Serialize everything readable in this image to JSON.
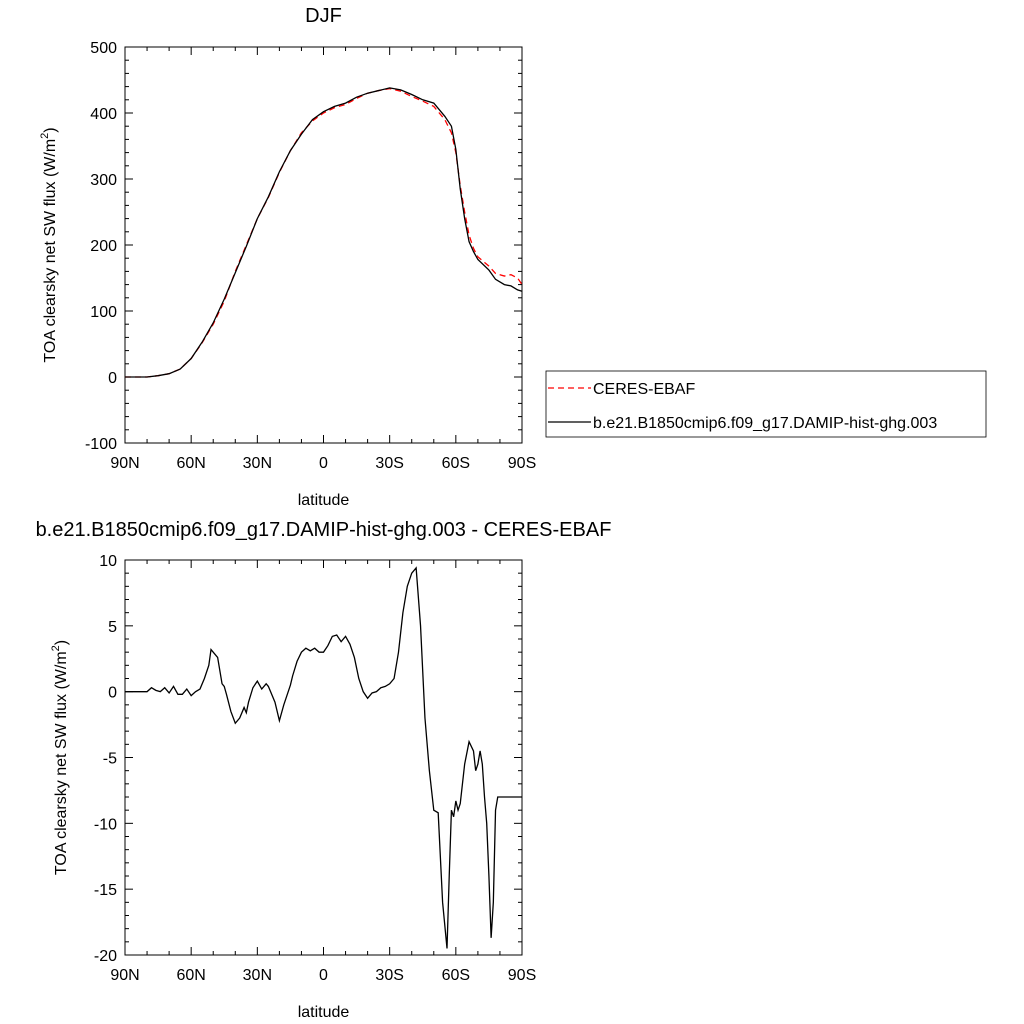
{
  "chart_data": [
    {
      "type": "line",
      "title": "DJF",
      "xlabel": "latitude",
      "ylabel_main": "TOA clearsky net SW flux (W/m",
      "ylabel_sup": "2",
      "ylabel_close": ")",
      "xlim": [
        90,
        -90
      ],
      "ylim": [
        -100,
        500
      ],
      "xtick_values": [
        90,
        60,
        30,
        0,
        -30,
        -60,
        -90
      ],
      "xtick_labels": [
        "90N",
        "60N",
        "30N",
        "0",
        "30S",
        "60S",
        "90S"
      ],
      "ytick_values": [
        -100,
        0,
        100,
        200,
        300,
        400,
        500
      ],
      "ytick_labels": [
        "-100",
        "0",
        "100",
        "200",
        "300",
        "400",
        "500"
      ],
      "series": [
        {
          "name": "CERES-EBAF",
          "color": "#ff0000",
          "dashed": true,
          "x": [
            90,
            85,
            80,
            75,
            70,
            65,
            60,
            55,
            50,
            45,
            40,
            35,
            30,
            25,
            20,
            15,
            10,
            5,
            0,
            -5,
            -10,
            -15,
            -20,
            -25,
            -30,
            -35,
            -40,
            -45,
            -50,
            -55,
            -58,
            -60,
            -62,
            -64,
            -66,
            -68,
            -70,
            -75,
            -78,
            -80,
            -82,
            -85,
            -88,
            -90
          ],
          "y": [
            0,
            0,
            0,
            2,
            5,
            12,
            28,
            52,
            80,
            115,
            160,
            200,
            240,
            272,
            310,
            343,
            370,
            388,
            400,
            408,
            413,
            422,
            430,
            434,
            437,
            433,
            425,
            418,
            410,
            390,
            370,
            340,
            290,
            250,
            215,
            195,
            182,
            168,
            157,
            155,
            153,
            155,
            150,
            140
          ]
        },
        {
          "name": "b.e21.B1850cmip6.f09_g17.DAMIP-hist-ghg.003",
          "color": "#000000",
          "dashed": false,
          "x": [
            90,
            85,
            80,
            75,
            70,
            65,
            60,
            55,
            50,
            45,
            40,
            35,
            30,
            25,
            20,
            15,
            10,
            5,
            0,
            -5,
            -10,
            -15,
            -20,
            -25,
            -30,
            -35,
            -40,
            -45,
            -50,
            -55,
            -58,
            -60,
            -62,
            -64,
            -66,
            -68,
            -70,
            -75,
            -78,
            -80,
            -82,
            -85,
            -88,
            -90
          ],
          "y": [
            0,
            0,
            0,
            2,
            5,
            12,
            28,
            53,
            82,
            118,
            158,
            198,
            240,
            273,
            311,
            343,
            368,
            390,
            402,
            410,
            415,
            424,
            430,
            434,
            438,
            435,
            428,
            420,
            415,
            395,
            380,
            345,
            285,
            240,
            205,
            190,
            178,
            162,
            148,
            144,
            140,
            138,
            132,
            130
          ]
        }
      ],
      "legend": {
        "placement": "right",
        "entries": [
          "CERES-EBAF",
          "b.e21.B1850cmip6.f09_g17.DAMIP-hist-ghg.003"
        ]
      }
    },
    {
      "type": "line",
      "title": "b.e21.B1850cmip6.f09_g17.DAMIP-hist-ghg.003 - CERES-EBAF",
      "xlabel": "latitude",
      "ylabel_main": "TOA clearsky net SW flux (W/m",
      "ylabel_sup": "2",
      "ylabel_close": ")",
      "xlim": [
        90,
        -90
      ],
      "ylim": [
        -20,
        10
      ],
      "xtick_values": [
        90,
        60,
        30,
        0,
        -30,
        -60,
        -90
      ],
      "xtick_labels": [
        "90N",
        "60N",
        "30N",
        "0",
        "30S",
        "60S",
        "90S"
      ],
      "ytick_values": [
        -20,
        -15,
        -10,
        -5,
        0,
        5,
        10
      ],
      "ytick_labels": [
        "-20",
        "-15",
        "-10",
        "-5",
        "0",
        "5",
        "10"
      ],
      "series": [
        {
          "name": "b.e21.B1850cmip6.f09_g17.DAMIP-hist-ghg.003 - CERES-EBAF",
          "color": "#000000",
          "dashed": false,
          "x": [
            90,
            80,
            78,
            76,
            74,
            72,
            70,
            68,
            66,
            64,
            62,
            60,
            58,
            56,
            54,
            52,
            51,
            50,
            48,
            46,
            45,
            44,
            42,
            40,
            38,
            36,
            35,
            34,
            32,
            30,
            28,
            26,
            25,
            24,
            22,
            20,
            18,
            16,
            15,
            14,
            12,
            10,
            8,
            6,
            4,
            2,
            0,
            -2,
            -4,
            -6,
            -8,
            -10,
            -12,
            -14,
            -16,
            -18,
            -20,
            -22,
            -24,
            -26,
            -28,
            -30,
            -32,
            -34,
            -36,
            -38,
            -40,
            -42,
            -44,
            -46,
            -48,
            -50,
            -52,
            -54,
            -56,
            -57,
            -58,
            -59,
            -60,
            -61,
            -62,
            -64,
            -66,
            -68,
            -69,
            -70,
            -71,
            -72,
            -73,
            -74,
            -75,
            -76,
            -77,
            -78,
            -79,
            -80,
            -82,
            -84,
            -86,
            -88,
            -89,
            -90
          ],
          "y": [
            0,
            0,
            0.3,
            0.1,
            0,
            0.3,
            -0.1,
            0.4,
            -0.2,
            -0.2,
            0.2,
            -0.3,
            0,
            0.2,
            1.0,
            2.0,
            3.2,
            3.0,
            2.6,
            0.6,
            0.4,
            -0.2,
            -1.5,
            -2.4,
            -2.0,
            -1.2,
            -1.6,
            -0.8,
            0.3,
            0.8,
            0.2,
            0.6,
            0.4,
            0,
            -0.8,
            -2.2,
            -1.0,
            0.0,
            0.5,
            1.2,
            2.3,
            3.0,
            3.3,
            3.1,
            3.3,
            3.0,
            3.0,
            3.5,
            4.2,
            4.3,
            3.8,
            4.2,
            3.6,
            2.6,
            1.0,
            0.0,
            -0.5,
            -0.1,
            0,
            0.3,
            0.4,
            0.6,
            1.0,
            3.0,
            6.0,
            8.0,
            9.0,
            9.4,
            5.0,
            -2.0,
            -6.0,
            -9.0,
            -9.2,
            -16.0,
            -19.5,
            -14.0,
            -9.0,
            -9.5,
            -8.3,
            -9.0,
            -8.5,
            -5.5,
            -3.8,
            -4.5,
            -6.0,
            -5.5,
            -4.5,
            -5.5,
            -8.0,
            -10.0,
            -14.0,
            -18.7,
            -16.0,
            -9.0,
            -8.0,
            -8.0,
            -8.0,
            -8.0,
            -8.0,
            -8.0,
            -8.0,
            -8.0
          ]
        }
      ]
    }
  ]
}
